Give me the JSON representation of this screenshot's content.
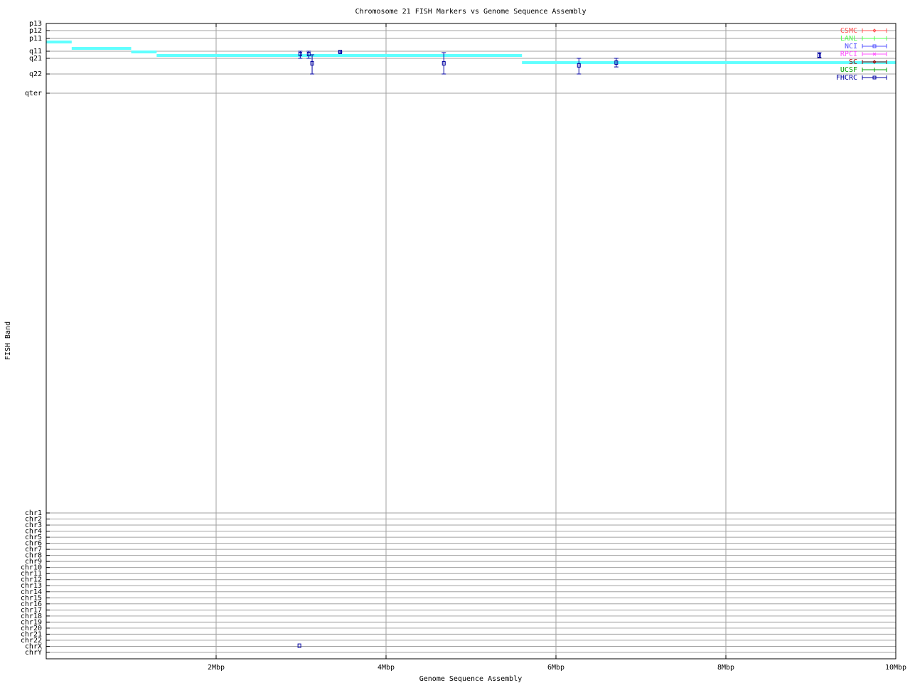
{
  "chart_data": {
    "type": "scatter",
    "title": "Chromosome 21 FISH Markers vs Genome Sequence Assembly",
    "xlabel": "Genome Sequence Assembly",
    "ylabel": "FISH Band",
    "xlim": [
      0,
      10
    ],
    "x_unit": "Mbp",
    "xticks": [
      {
        "value": 2,
        "label": "2Mbp"
      },
      {
        "value": 4,
        "label": "4Mbp"
      },
      {
        "value": 6,
        "label": "6Mbp"
      },
      {
        "value": 8,
        "label": "8Mbp"
      },
      {
        "value": 10,
        "label": "10Mbp"
      }
    ],
    "yticks": [
      "p13",
      "p12",
      "p11",
      "q11",
      "q21",
      "q22",
      "qter",
      "chr1",
      "chr2",
      "chr3",
      "chr4",
      "chr5",
      "chr6",
      "chr7",
      "chr8",
      "chr9",
      "chr10",
      "chr11",
      "chr12",
      "chr13",
      "chr14",
      "chr15",
      "chr16",
      "chr17",
      "chr18",
      "chr19",
      "chr20",
      "chr21",
      "chr22",
      "chrX",
      "chrY"
    ],
    "y_encoding": "band index (0 = p13 ... 6 = qter, 7 = chr1 ... 30 = chrY); fractional = between bands",
    "grid": true,
    "legend_placement": "top-right",
    "legend": [
      {
        "name": "CSMC",
        "color": "#ff5050",
        "symbol": "diamond"
      },
      {
        "name": "LANL",
        "color": "#50ff50",
        "symbol": "plus"
      },
      {
        "name": "NCI",
        "color": "#5050ff",
        "symbol": "square"
      },
      {
        "name": "RPCI",
        "color": "#ff50ff",
        "symbol": "cross"
      },
      {
        "name": "SC",
        "color": "#a00000",
        "symbol": "diamond"
      },
      {
        "name": "UCSF",
        "color": "#00a000",
        "symbol": "plus"
      },
      {
        "name": "FHCRC",
        "color": "#0000a0",
        "symbol": "square"
      }
    ],
    "assembly_bands": {
      "color": "#60ffff",
      "segments": [
        {
          "x0": 0.0,
          "x1": 0.3,
          "y": 2.28
        },
        {
          "x0": 0.3,
          "x1": 1.0,
          "y": 2.78
        },
        {
          "x0": 1.0,
          "x1": 1.3,
          "y": 3.1
        },
        {
          "x0": 1.3,
          "x1": 5.6,
          "y": 3.6
        },
        {
          "x0": 5.6,
          "x1": 10.0,
          "y": 4.27
        }
      ]
    },
    "series": [
      {
        "name": "FHCRC",
        "points": [
          {
            "x": 2.99,
            "y": 3.4,
            "ylo": 3.0,
            "yhi": 4.0
          },
          {
            "x": 3.09,
            "y": 3.4,
            "ylo": 3.0,
            "yhi": 4.0
          },
          {
            "x": 3.13,
            "y": 4.32,
            "ylo": 3.5,
            "yhi": 5.0
          },
          {
            "x": 3.46,
            "y": 3.1,
            "ylo": 3.0,
            "yhi": 3.2
          },
          {
            "x": 4.68,
            "y": 4.32,
            "ylo": 3.2,
            "yhi": 5.0
          },
          {
            "x": 6.27,
            "y": 4.45,
            "ylo": 4.0,
            "yhi": 5.0
          },
          {
            "x": 6.71,
            "y": 4.27,
            "ylo": 4.0,
            "yhi": 4.55
          },
          {
            "x": 9.1,
            "y": 3.6,
            "ylo": 3.2,
            "yhi": 3.9
          },
          {
            "x": 2.98,
            "y": 28.9
          }
        ]
      }
    ]
  }
}
